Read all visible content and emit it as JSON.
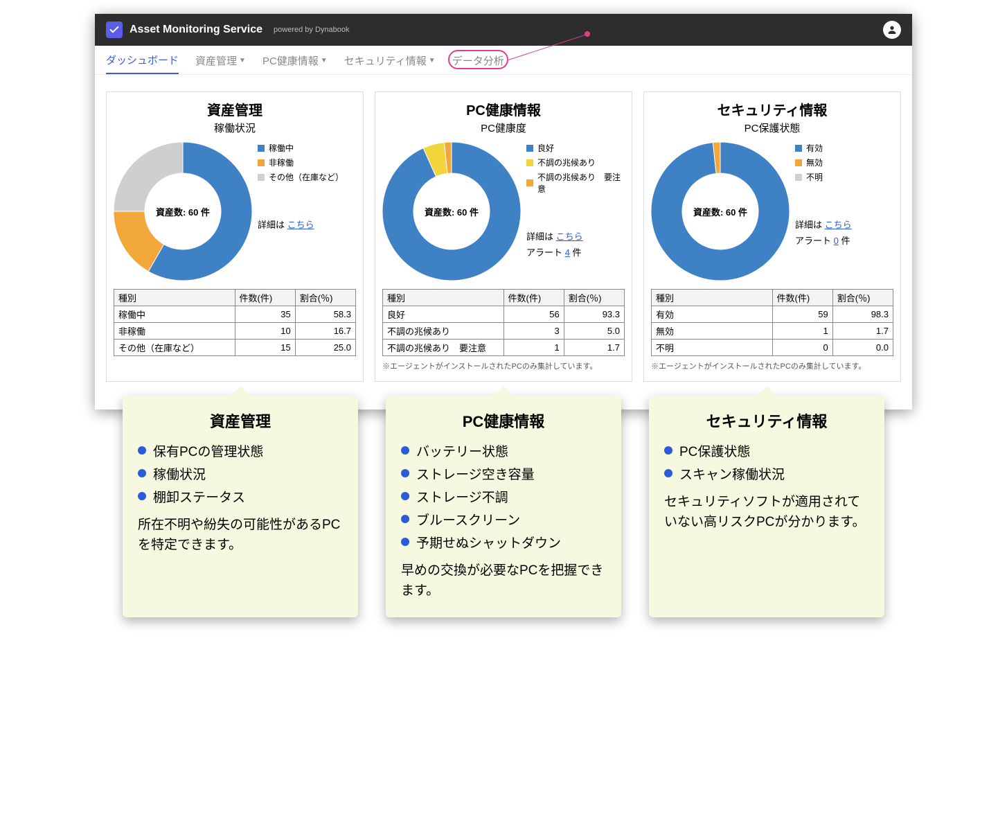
{
  "header": {
    "app_title": "Asset Monitoring Service",
    "powered": "powered by Dynabook"
  },
  "nav": {
    "items": [
      {
        "label": "ダッシュボード",
        "active": true,
        "dropdown": false
      },
      {
        "label": "資産管理",
        "active": false,
        "dropdown": true
      },
      {
        "label": "PC健康情報",
        "active": false,
        "dropdown": true
      },
      {
        "label": "セキュリティ情報",
        "active": false,
        "dropdown": true
      },
      {
        "label": "データ分析",
        "active": false,
        "dropdown": false,
        "highlighted": true
      }
    ]
  },
  "cards": [
    {
      "title": "資産管理",
      "subtitle": "稼働状況",
      "center_label": "資産数: 60 件",
      "detail_prefix": "詳細は ",
      "detail_link": "こちら",
      "alert": null,
      "footnote": null,
      "donut": {
        "colors": [
          "#3e81c4",
          "#f2a73b",
          "#cfcfcf"
        ],
        "values": [
          58.3,
          16.7,
          25.0
        ],
        "inner_ratio": 0.55,
        "bg": "#ffffff"
      },
      "legend": [
        {
          "color": "#3e81c4",
          "label": "稼働中"
        },
        {
          "color": "#f2a73b",
          "label": "非稼働"
        },
        {
          "color": "#cfcfcf",
          "label": "その他（在庫など）"
        }
      ],
      "table": {
        "headers": [
          "種別",
          "件数(件)",
          "割合(％)"
        ],
        "rows": [
          [
            "稼働中",
            "35",
            "58.3"
          ],
          [
            "非稼働",
            "10",
            "16.7"
          ],
          [
            "その他（在庫など）",
            "15",
            "25.0"
          ]
        ]
      }
    },
    {
      "title": "PC健康情報",
      "subtitle": "PC健康度",
      "center_label": "資産数: 60 件",
      "detail_prefix": "詳細は ",
      "detail_link": "こちら",
      "alert": {
        "prefix": "アラート ",
        "count": "4",
        "suffix": " 件"
      },
      "footnote": "※エージェントがインストールされたPCのみ集計しています。",
      "donut": {
        "colors": [
          "#3e81c4",
          "#f2d43b",
          "#f2a73b"
        ],
        "values": [
          93.3,
          5.0,
          1.7
        ],
        "inner_ratio": 0.55,
        "bg": "#ffffff"
      },
      "legend": [
        {
          "color": "#3e81c4",
          "label": "良好"
        },
        {
          "color": "#f2d43b",
          "label": "不調の兆候あり"
        },
        {
          "color": "#f2a73b",
          "label": "不調の兆候あり　要注意"
        }
      ],
      "table": {
        "headers": [
          "種別",
          "件数(件)",
          "割合(％)"
        ],
        "rows": [
          [
            "良好",
            "56",
            "93.3"
          ],
          [
            "不調の兆候あり",
            "3",
            "5.0"
          ],
          [
            "不調の兆候あり　要注意",
            "1",
            "1.7"
          ]
        ]
      }
    },
    {
      "title": "セキュリティ情報",
      "subtitle": "PC保護状態",
      "center_label": "資産数: 60 件",
      "detail_prefix": "詳細は ",
      "detail_link": "こちら",
      "alert": {
        "prefix": "アラート ",
        "count": "0",
        "suffix": " 件"
      },
      "footnote": "※エージェントがインストールされたPCのみ集計しています。",
      "donut": {
        "colors": [
          "#3e81c4",
          "#f2a73b",
          "#cfcfcf"
        ],
        "values": [
          98.3,
          1.7,
          0.0
        ],
        "inner_ratio": 0.55,
        "bg": "#ffffff"
      },
      "legend": [
        {
          "color": "#3e81c4",
          "label": "有効"
        },
        {
          "color": "#f2a73b",
          "label": "無効"
        },
        {
          "color": "#cfcfcf",
          "label": "不明"
        }
      ],
      "table": {
        "headers": [
          "種別",
          "件数(件)",
          "割合(％)"
        ],
        "rows": [
          [
            "有効",
            "59",
            "98.3"
          ],
          [
            "無効",
            "1",
            "1.7"
          ],
          [
            "不明",
            "0",
            "0.0"
          ]
        ]
      }
    }
  ],
  "callouts": [
    {
      "title": "資産管理",
      "bullets": [
        "保有PCの管理状態",
        "稼働状況",
        "棚卸ステータス"
      ],
      "desc": "所在不明や紛失の可能性があるPCを特定できます。"
    },
    {
      "title": "PC健康情報",
      "bullets": [
        "バッテリー状態",
        "ストレージ空き容量",
        "ストレージ不調",
        "ブルースクリーン",
        "予期せぬシャットダウン"
      ],
      "desc": "早めの交換が必要なPCを把握できます。"
    },
    {
      "title": "セキュリティ情報",
      "bullets": [
        "PC保護状態",
        "スキャン稼働状況"
      ],
      "desc": "セキュリティソフトが適用されていない高リスクPCが分かります。"
    }
  ]
}
